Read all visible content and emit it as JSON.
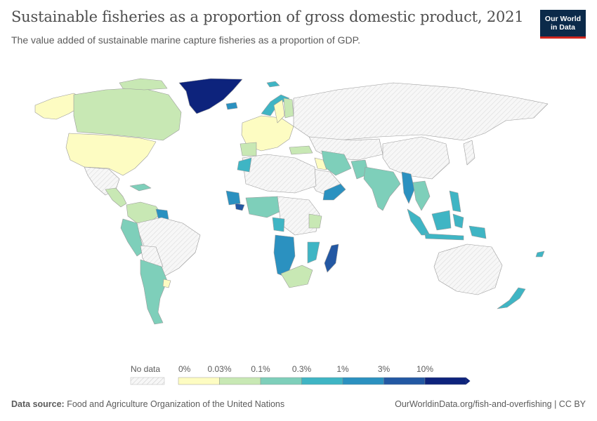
{
  "title": "Sustainable fisheries as a proportion of gross domestic product, 2021",
  "subtitle": "The value added of sustainable marine capture fisheries as a proportion of GDP.",
  "logo": {
    "line1": "Our World",
    "line2": "in Data"
  },
  "legend": {
    "no_data_label": "No data",
    "bins": [
      {
        "label": "0%",
        "color": "#fdfcc2"
      },
      {
        "label": "0.03%",
        "color": "#c8e8b4"
      },
      {
        "label": "0.1%",
        "color": "#7ecfba"
      },
      {
        "label": "0.3%",
        "color": "#3fb5c4"
      },
      {
        "label": "1%",
        "color": "#2b91c0"
      },
      {
        "label": "3%",
        "color": "#2358a3"
      },
      {
        "label": "10%",
        "color": "#0d237c"
      }
    ]
  },
  "footer": {
    "source_label": "Data source:",
    "source_text": "Food and Agriculture Organization of the United Nations",
    "url_text": "OurWorldinData.org/fish-and-overfishing | CC BY"
  }
}
